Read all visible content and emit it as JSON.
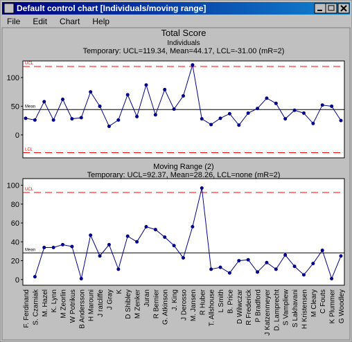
{
  "window": {
    "title": "Default control chart [Individuals/moving range]",
    "menu": [
      "File",
      "Edit",
      "Chart",
      "Help"
    ]
  },
  "chart_data": [
    {
      "type": "line",
      "title": "Total Score",
      "subtitle": "Individuals",
      "note": "Temporary: UCL=119.34, Mean=44.17, LCL=-31.00 (mR=2)",
      "values": [
        29,
        26,
        58,
        26,
        62,
        28,
        30,
        75,
        50,
        15,
        26,
        70,
        32,
        87,
        35,
        79,
        45,
        68,
        122,
        28,
        18,
        29,
        37,
        17,
        38,
        46,
        64,
        55,
        28,
        43,
        38,
        20,
        52,
        50,
        25
      ],
      "color": "#00008b",
      "ylim": [
        -40,
        129
      ],
      "yticks": [
        0,
        50,
        100
      ],
      "control_lines": [
        {
          "label": "UCL",
          "value": 119.34,
          "color": "#ff0000",
          "dashed": true
        },
        {
          "label": "Mean",
          "value": 44.17,
          "color": "#000000",
          "dashed": false
        },
        {
          "label": "LCL",
          "value": -31.0,
          "color": "#ff0000",
          "dashed": true
        }
      ]
    },
    {
      "type": "line",
      "title": "Moving Range (2)",
      "note": "Temporary: UCL=92.37, Mean=28.26, LCL=none (mR=2)",
      "categories": [
        "F. Ferdinand",
        "S. Czarniak",
        "M. Hazel",
        "K. Lynn",
        "M Zeorlin",
        "W Potrikus",
        "B Andersson",
        "H Marouni",
        "J ratcliffe",
        "J Gray",
        "K",
        "D Shibley",
        "M Zenker",
        "Juran",
        "R Bernier",
        "G. Atkinson",
        "J. King",
        "J Derosso",
        "M. Jansen",
        "R Huber",
        "T. Allshouse",
        "L Smith",
        "B. Price",
        "D Wilwczar",
        "R Frederick",
        "P Bradford",
        "J Katzenmeyer",
        "D. Lamprecht",
        "S Vampliew",
        "S Lakhavani",
        "H Kristensen",
        "M Cleary",
        "C Fouts",
        "K Plummer",
        "G Woodley"
      ],
      "values": [
        null,
        3,
        34,
        34,
        37,
        35,
        1,
        47,
        25,
        37,
        11,
        46,
        40,
        56,
        53,
        45,
        36,
        23,
        56,
        97,
        11,
        13,
        7,
        20,
        21,
        8,
        18,
        11,
        26,
        14,
        5,
        17,
        31,
        1,
        25
      ],
      "color": "#00008b",
      "ylim": [
        -6,
        107
      ],
      "yticks": [
        0,
        20,
        40,
        60,
        80,
        100
      ],
      "control_lines": [
        {
          "label": "UCL",
          "value": 92.37,
          "color": "#ff0000",
          "dashed": true
        },
        {
          "label": "Mean",
          "value": 28.26,
          "color": "#000000",
          "dashed": false
        }
      ]
    }
  ]
}
